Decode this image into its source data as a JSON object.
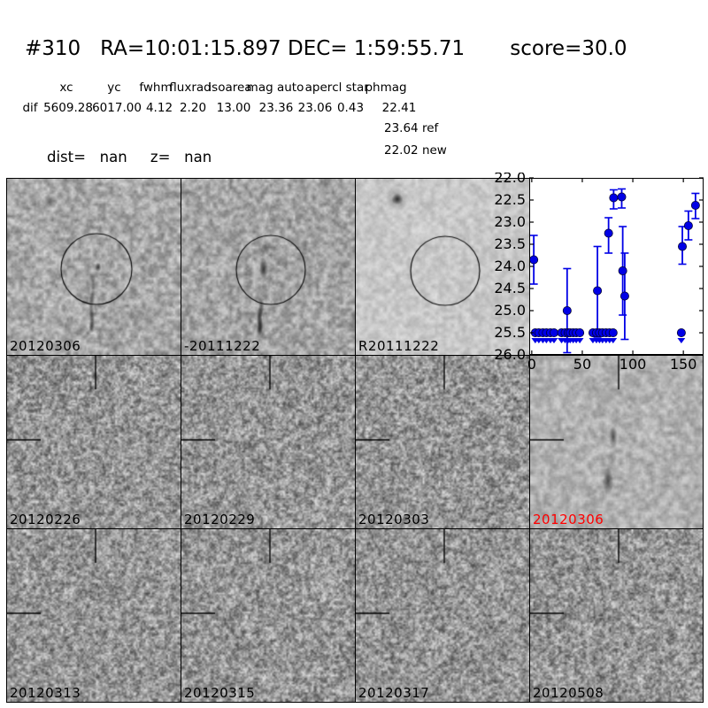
{
  "header": {
    "title": "#310   RA=10:01:15.897 DEC= 1:59:55.71       score=30.0",
    "columns": [
      "xc",
      "yc",
      "fwhm",
      "fluxrad",
      "isoarea",
      "mag auto",
      "aper",
      "cl star",
      "phmag"
    ],
    "row_label": "dif",
    "row_values": [
      "5609.28",
      "6017.00",
      "4.12",
      "2.20",
      "13.00",
      "23.36",
      "23.06",
      "0.43",
      "22.41"
    ],
    "ref_line": "23.64 ref",
    "new_line": "22.02 new",
    "dist_line": "dist=   nan     z=   nan"
  },
  "panels": {
    "row1": [
      {
        "label": "20120306",
        "label_color": "#000000"
      },
      {
        "label": "-20111222",
        "label_color": "#000000"
      },
      {
        "label": "R20111222",
        "label_color": "#000000"
      }
    ],
    "row2": [
      {
        "label": "20120226",
        "label_color": "#000000"
      },
      {
        "label": "20120229",
        "label_color": "#000000"
      },
      {
        "label": "20120303",
        "label_color": "#000000"
      },
      {
        "label": "20120306",
        "label_color": "#ff0000"
      }
    ],
    "row3": [
      {
        "label": "20120313",
        "label_color": "#000000"
      },
      {
        "label": "20120315",
        "label_color": "#000000"
      },
      {
        "label": "20120317",
        "label_color": "#000000"
      },
      {
        "label": "20120508",
        "label_color": "#000000"
      }
    ]
  },
  "chart_data": {
    "type": "scatter",
    "title": "",
    "xlabel": "",
    "ylabel": "",
    "xlim": [
      -2.5,
      170
    ],
    "ylim": [
      26.0,
      22.0
    ],
    "y_axis_inverted": true,
    "grid": false,
    "xticks": [
      0,
      50,
      100,
      150
    ],
    "yticks": [
      22.0,
      22.5,
      23.0,
      23.5,
      24.0,
      24.5,
      25.0,
      25.5,
      26.0
    ],
    "marker_color": "#0000e6",
    "series": [
      {
        "name": "detections",
        "marker": "circle-errorbar",
        "points": [
          {
            "x": 2,
            "mag": 23.85,
            "lo": 23.3,
            "hi": 24.4
          },
          {
            "x": 35,
            "mag": 25.0,
            "lo": 24.05,
            "hi": 25.95
          },
          {
            "x": 65,
            "mag": 24.55,
            "lo": 23.55,
            "hi": 25.6
          },
          {
            "x": 76,
            "mag": 23.25,
            "lo": 22.9,
            "hi": 23.7
          },
          {
            "x": 81,
            "mag": 22.45,
            "lo": 22.27,
            "hi": 22.7
          },
          {
            "x": 89,
            "mag": 22.43,
            "lo": 22.25,
            "hi": 22.68
          },
          {
            "x": 90,
            "mag": 24.1,
            "lo": 23.1,
            "hi": 25.1
          },
          {
            "x": 92,
            "mag": 24.67,
            "lo": 23.7,
            "hi": 25.65
          },
          {
            "x": 149,
            "mag": 23.55,
            "lo": 23.1,
            "hi": 23.95
          },
          {
            "x": 155,
            "mag": 23.08,
            "lo": 22.75,
            "hi": 23.4
          },
          {
            "x": 162,
            "mag": 22.62,
            "lo": 22.35,
            "hi": 22.92
          }
        ]
      },
      {
        "name": "upper-limits",
        "marker": "circle-down-arrow",
        "mag": 25.5,
        "x": [
          3.5,
          7,
          11,
          14.5,
          18.5,
          22,
          29.5,
          33,
          36,
          38,
          41,
          44,
          47.5,
          60.5,
          64,
          67,
          70,
          73.5,
          77,
          80.5,
          148
        ]
      }
    ]
  }
}
